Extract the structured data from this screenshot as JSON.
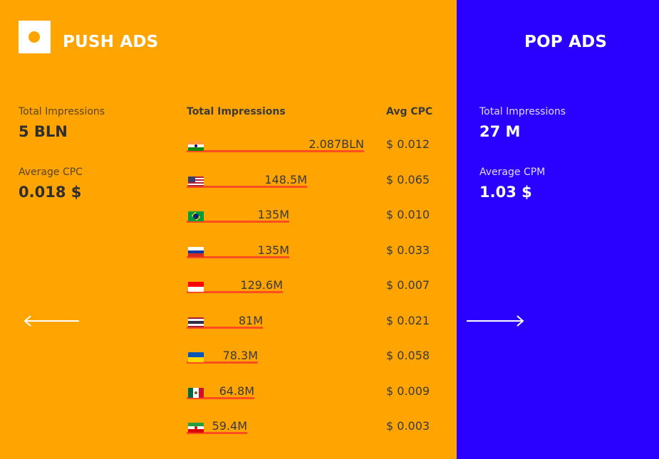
{
  "push": {
    "title": "PUSH ADS",
    "total_label": "Total Impressions",
    "total_value": "5 BLN",
    "avg_label": "Average CPC",
    "avg_value": "0.018 $",
    "col_impressions": "Total Impressions",
    "col_cpc": "Avg CPC",
    "rows": [
      {
        "country": "India",
        "flag_icon": "india-flag-icon",
        "impressions": "2.087BLN",
        "cpc": "$ 0.012"
      },
      {
        "country": "United States",
        "flag_icon": "us-flag-icon",
        "impressions": "148.5M",
        "cpc": "$ 0.065"
      },
      {
        "country": "Brazil",
        "flag_icon": "brazil-flag-icon",
        "impressions": "135M",
        "cpc": "$ 0.010"
      },
      {
        "country": "Russia",
        "flag_icon": "russia-flag-icon",
        "impressions": "135M",
        "cpc": "$ 0.033"
      },
      {
        "country": "Indonesia",
        "flag_icon": "indonesia-flag-icon",
        "impressions": "129.6M",
        "cpc": "$ 0.007"
      },
      {
        "country": "Thailand",
        "flag_icon": "thailand-flag-icon",
        "impressions": "81M",
        "cpc": "$ 0.021"
      },
      {
        "country": "Ukraine",
        "flag_icon": "ukraine-flag-icon",
        "impressions": "78.3M",
        "cpc": "$ 0.058"
      },
      {
        "country": "Mexico",
        "flag_icon": "mexico-flag-icon",
        "impressions": "64.8M",
        "cpc": "$ 0.009"
      },
      {
        "country": "Iran",
        "flag_icon": "iran-flag-icon",
        "impressions": "59.4M",
        "cpc": "$ 0.003"
      }
    ]
  },
  "pop": {
    "title": "POP ADS",
    "total_label": "Total Impressions",
    "total_value": "27 M",
    "avg_label": "Average CPM",
    "avg_value": "1.03 $"
  },
  "icons": {
    "logo": "logo-icon",
    "prev": "arrow-left-icon",
    "next": "arrow-right-icon"
  },
  "colors": {
    "push_bg": "#FFA400",
    "pop_bg": "#2A00FF",
    "bar_underline": "#FF4D1F"
  }
}
